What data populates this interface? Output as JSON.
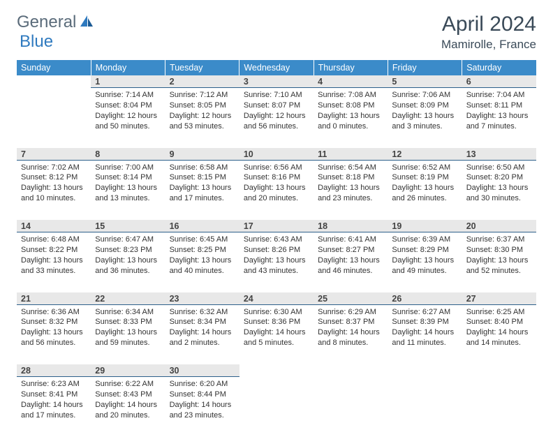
{
  "brand": {
    "part1": "General",
    "part2": "Blue",
    "color_gray": "#5a6b7a",
    "color_blue": "#2f7abf"
  },
  "title": "April 2024",
  "location": "Mamirolle, France",
  "header_bg": "#3b8bc9",
  "header_fg": "#ffffff",
  "daynum_bg": "#e8e8e8",
  "daynum_border": "#2c5f8a",
  "weekdays": [
    "Sunday",
    "Monday",
    "Tuesday",
    "Wednesday",
    "Thursday",
    "Friday",
    "Saturday"
  ],
  "weeks": [
    [
      null,
      {
        "n": "1",
        "sunrise": "7:14 AM",
        "sunset": "8:04 PM",
        "daylight": "12 hours and 50 minutes."
      },
      {
        "n": "2",
        "sunrise": "7:12 AM",
        "sunset": "8:05 PM",
        "daylight": "12 hours and 53 minutes."
      },
      {
        "n": "3",
        "sunrise": "7:10 AM",
        "sunset": "8:07 PM",
        "daylight": "12 hours and 56 minutes."
      },
      {
        "n": "4",
        "sunrise": "7:08 AM",
        "sunset": "8:08 PM",
        "daylight": "13 hours and 0 minutes."
      },
      {
        "n": "5",
        "sunrise": "7:06 AM",
        "sunset": "8:09 PM",
        "daylight": "13 hours and 3 minutes."
      },
      {
        "n": "6",
        "sunrise": "7:04 AM",
        "sunset": "8:11 PM",
        "daylight": "13 hours and 7 minutes."
      }
    ],
    [
      {
        "n": "7",
        "sunrise": "7:02 AM",
        "sunset": "8:12 PM",
        "daylight": "13 hours and 10 minutes."
      },
      {
        "n": "8",
        "sunrise": "7:00 AM",
        "sunset": "8:14 PM",
        "daylight": "13 hours and 13 minutes."
      },
      {
        "n": "9",
        "sunrise": "6:58 AM",
        "sunset": "8:15 PM",
        "daylight": "13 hours and 17 minutes."
      },
      {
        "n": "10",
        "sunrise": "6:56 AM",
        "sunset": "8:16 PM",
        "daylight": "13 hours and 20 minutes."
      },
      {
        "n": "11",
        "sunrise": "6:54 AM",
        "sunset": "8:18 PM",
        "daylight": "13 hours and 23 minutes."
      },
      {
        "n": "12",
        "sunrise": "6:52 AM",
        "sunset": "8:19 PM",
        "daylight": "13 hours and 26 minutes."
      },
      {
        "n": "13",
        "sunrise": "6:50 AM",
        "sunset": "8:20 PM",
        "daylight": "13 hours and 30 minutes."
      }
    ],
    [
      {
        "n": "14",
        "sunrise": "6:48 AM",
        "sunset": "8:22 PM",
        "daylight": "13 hours and 33 minutes."
      },
      {
        "n": "15",
        "sunrise": "6:47 AM",
        "sunset": "8:23 PM",
        "daylight": "13 hours and 36 minutes."
      },
      {
        "n": "16",
        "sunrise": "6:45 AM",
        "sunset": "8:25 PM",
        "daylight": "13 hours and 40 minutes."
      },
      {
        "n": "17",
        "sunrise": "6:43 AM",
        "sunset": "8:26 PM",
        "daylight": "13 hours and 43 minutes."
      },
      {
        "n": "18",
        "sunrise": "6:41 AM",
        "sunset": "8:27 PM",
        "daylight": "13 hours and 46 minutes."
      },
      {
        "n": "19",
        "sunrise": "6:39 AM",
        "sunset": "8:29 PM",
        "daylight": "13 hours and 49 minutes."
      },
      {
        "n": "20",
        "sunrise": "6:37 AM",
        "sunset": "8:30 PM",
        "daylight": "13 hours and 52 minutes."
      }
    ],
    [
      {
        "n": "21",
        "sunrise": "6:36 AM",
        "sunset": "8:32 PM",
        "daylight": "13 hours and 56 minutes."
      },
      {
        "n": "22",
        "sunrise": "6:34 AM",
        "sunset": "8:33 PM",
        "daylight": "13 hours and 59 minutes."
      },
      {
        "n": "23",
        "sunrise": "6:32 AM",
        "sunset": "8:34 PM",
        "daylight": "14 hours and 2 minutes."
      },
      {
        "n": "24",
        "sunrise": "6:30 AM",
        "sunset": "8:36 PM",
        "daylight": "14 hours and 5 minutes."
      },
      {
        "n": "25",
        "sunrise": "6:29 AM",
        "sunset": "8:37 PM",
        "daylight": "14 hours and 8 minutes."
      },
      {
        "n": "26",
        "sunrise": "6:27 AM",
        "sunset": "8:39 PM",
        "daylight": "14 hours and 11 minutes."
      },
      {
        "n": "27",
        "sunrise": "6:25 AM",
        "sunset": "8:40 PM",
        "daylight": "14 hours and 14 minutes."
      }
    ],
    [
      {
        "n": "28",
        "sunrise": "6:23 AM",
        "sunset": "8:41 PM",
        "daylight": "14 hours and 17 minutes."
      },
      {
        "n": "29",
        "sunrise": "6:22 AM",
        "sunset": "8:43 PM",
        "daylight": "14 hours and 20 minutes."
      },
      {
        "n": "30",
        "sunrise": "6:20 AM",
        "sunset": "8:44 PM",
        "daylight": "14 hours and 23 minutes."
      },
      null,
      null,
      null,
      null
    ]
  ],
  "labels": {
    "sunrise": "Sunrise: ",
    "sunset": "Sunset: ",
    "daylight": "Daylight: "
  }
}
